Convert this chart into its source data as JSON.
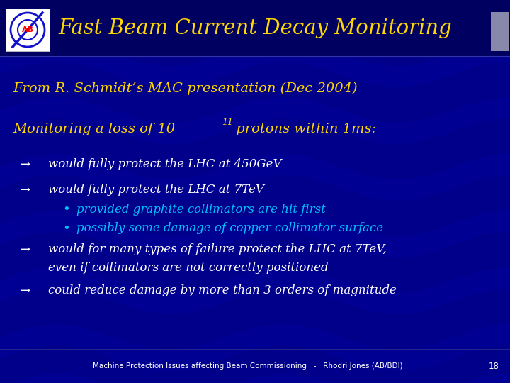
{
  "title": "Fast Beam Current Decay Monitoring",
  "subtitle": "From R. Schmidt’s MAC presentation (Dec 2004)",
  "section_header_pre": "Monitoring a loss of 10",
  "section_header_exp": "11",
  "section_header_post": " protons within 1ms:",
  "bg_color": "#00008B",
  "title_bar_color": "#000060",
  "title_color": "#FFD700",
  "subtitle_color": "#FFD700",
  "header_color": "#FFD700",
  "white_color": "#FFFFFF",
  "cyan_color": "#00BFFF",
  "footer_text": "Machine Protection Issues affecting Beam Commissioning   -   Rhodri Jones (AB/BDI)",
  "page_num": "18",
  "arrow_items": [
    {
      "text": "would fully protect the LHC at 450GeV",
      "line2": null
    },
    {
      "text": "would fully protect the LHC at 7TeV",
      "line2": null
    },
    {
      "text": "would for many types of failure protect the LHC at 7TeV,",
      "line2": "even if collimators are not correctly positioned"
    },
    {
      "text": "could reduce damage by more than 3 orders of magnitude",
      "line2": null
    }
  ],
  "bullet_items": [
    "provided graphite collimators are hit first",
    "possibly some damage of copper collimator surface"
  ],
  "stripe_color": "#000099",
  "accent_rect_color": "#8888AA"
}
